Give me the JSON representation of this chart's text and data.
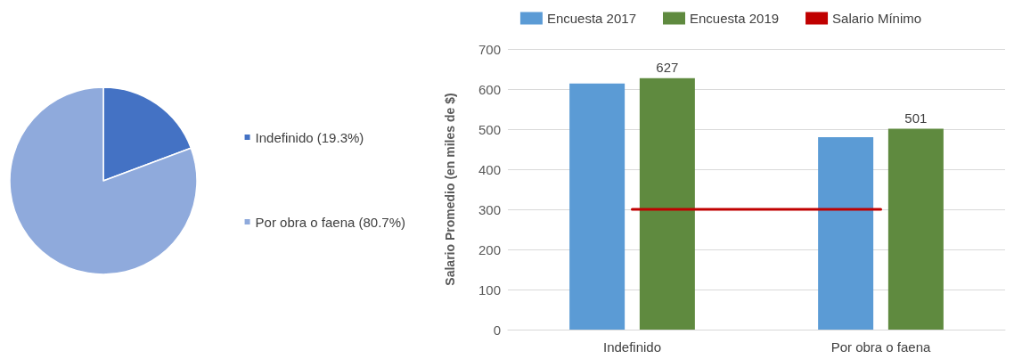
{
  "chart_data": [
    {
      "type": "pie",
      "categories": [
        "Indefinido (19.3%)",
        "Por obra o faena (80.7%)"
      ],
      "values": [
        19.3,
        80.7
      ],
      "colors": [
        "#4472c4",
        "#8faadc"
      ],
      "legend": "right"
    },
    {
      "type": "bar",
      "categories": [
        "Indefinido",
        "Por obra o faena"
      ],
      "ylabel": "Salario Promedio (en miles de $)",
      "series": [
        {
          "name": "Encuesta 2017",
          "color": "#5b9bd5",
          "values": [
            614,
            480
          ]
        },
        {
          "name": "Encuesta 2019",
          "color": "#5f8a3f",
          "values": [
            627,
            501
          ],
          "value_labels": [
            "627",
            "501"
          ]
        },
        {
          "name": "Salario Mínimo",
          "type": "line",
          "color": "#c00000",
          "values": [
            300,
            300
          ]
        }
      ],
      "ylim": [
        0,
        700
      ],
      "yticks": [
        0,
        100,
        200,
        300,
        400,
        500,
        600,
        700
      ],
      "grid": "y",
      "legend": "top",
      "marker": "none"
    }
  ]
}
